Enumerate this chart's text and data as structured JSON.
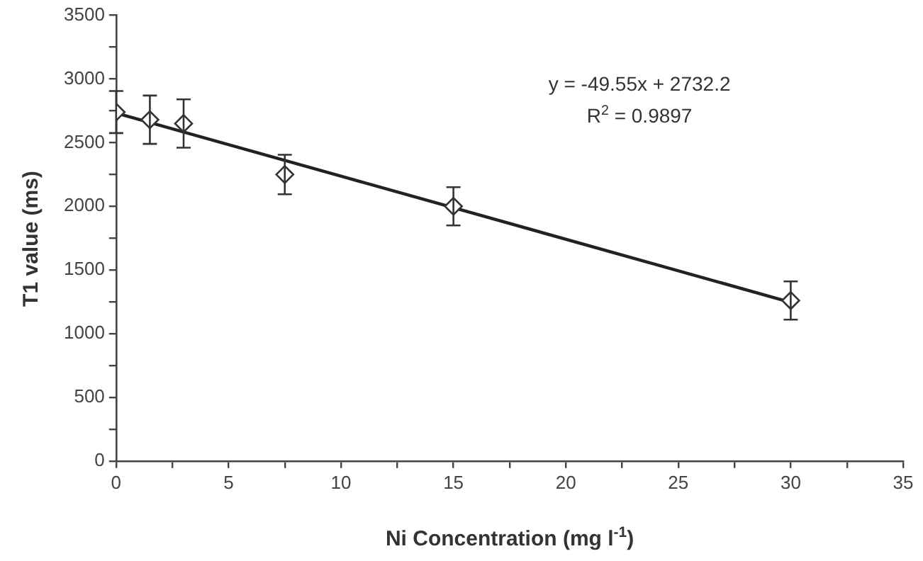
{
  "chart_data": {
    "type": "scatter",
    "xlabel": "Ni Concentration (mg l$^{-1}$)",
    "ylabel": "T1 value (ms)",
    "xlim": [
      0,
      35
    ],
    "xticks": [
      0,
      {
        "value": 2.5,
        "label": null
      },
      5,
      {
        "value": 7.5,
        "label": null
      },
      10,
      {
        "value": 12.5,
        "label": null
      },
      15,
      {
        "value": 17.5,
        "label": null
      },
      20,
      {
        "value": 22.5,
        "label": null
      },
      25,
      {
        "value": 27.5,
        "label": null
      },
      30,
      {
        "value": 32.5,
        "label": null
      },
      35
    ],
    "ylim": [
      0,
      3500
    ],
    "yticks": [
      0,
      {
        "value": 250,
        "label": null
      },
      500,
      {
        "value": 750,
        "label": null
      },
      1000,
      {
        "value": 1250,
        "label": null
      },
      1500,
      {
        "value": 1750,
        "label": null
      },
      2000,
      {
        "value": 2250,
        "label": null
      },
      2500,
      {
        "value": 2750,
        "label": null
      },
      3000,
      {
        "value": 3250,
        "label": null
      },
      3500
    ],
    "grid": false,
    "legend": false,
    "annotations": [
      "y = -49.55x + 2732.2",
      "R$^{2}$ = 0.9897"
    ],
    "series": [
      {
        "color": "#333333",
        "marker": "diamond",
        "x": [
          0,
          1.5,
          3,
          7.5,
          15,
          30
        ],
        "values": [
          2740,
          2680,
          2650,
          2250,
          2000,
          1260
        ],
        "errors": [
          165,
          190,
          190,
          155,
          150,
          150
        ]
      },
      {
        "type": "line",
        "color": "#222222",
        "line_style": "solid",
        "x": [
          0,
          30
        ],
        "values": [
          2732,
          1246
        ]
      }
    ]
  }
}
